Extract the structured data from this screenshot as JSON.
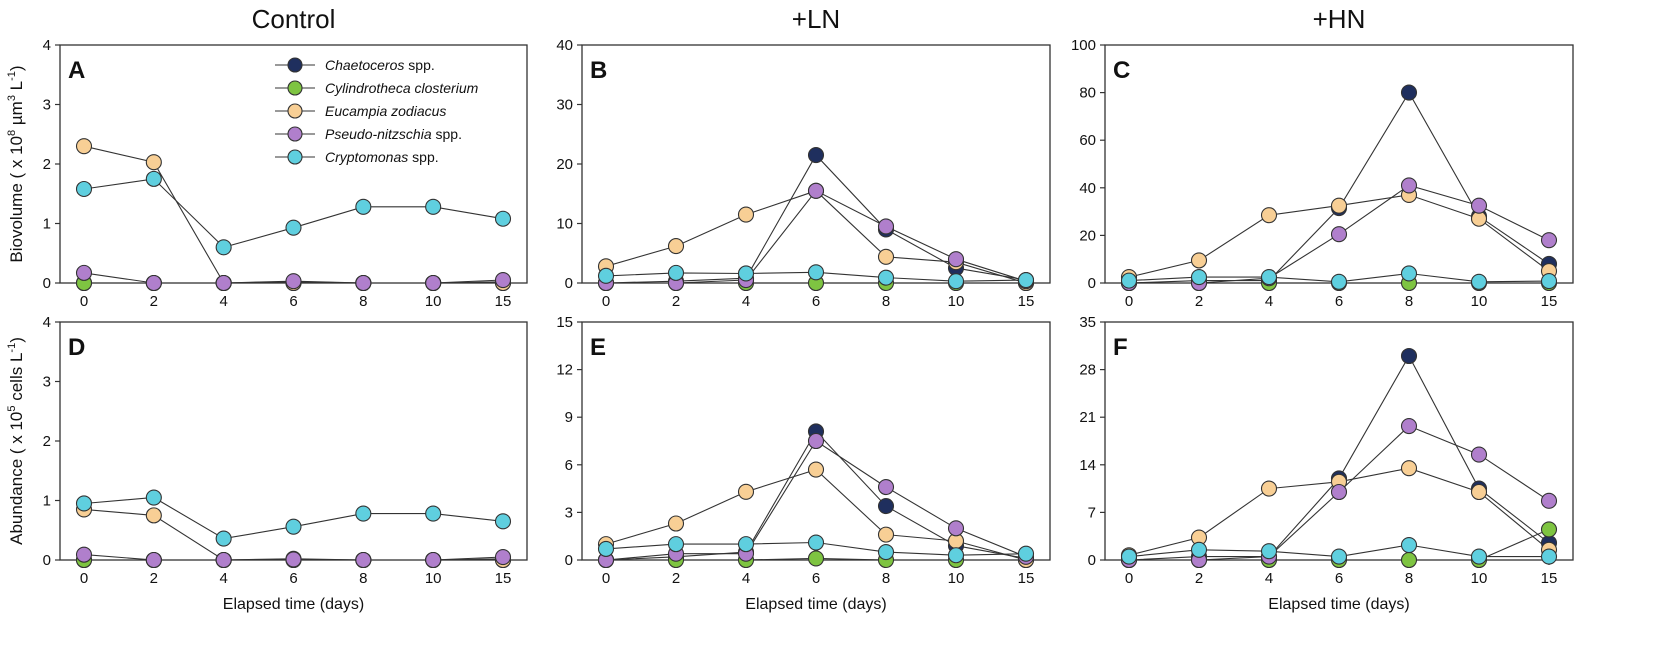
{
  "chart_data": {
    "type": "line",
    "x_categories": [
      "0",
      "2",
      "4",
      "6",
      "8",
      "10",
      "15"
    ],
    "x_label": "Elapsed time (days)",
    "row_labels": [
      {
        "main": "Biovolume ( x 10",
        "sup": "8",
        "tail": " µm",
        "sup2": "3",
        "tail2": " L",
        "sup3": "-1",
        "end": ")"
      },
      {
        "main": "Abundance ( x 10",
        "sup": "5",
        "tail": " cells L",
        "sup2": "-1",
        "tail2": "",
        "sup3": "",
        "end": ")"
      }
    ],
    "column_titles": [
      "Control",
      "+LN",
      "+HN"
    ],
    "series": [
      {
        "name": "Chaetoceros",
        "suffix": " spp.",
        "color": "#1f2f5e"
      },
      {
        "name": "Cylindrotheca closterium",
        "suffix": "",
        "color": "#7ec441"
      },
      {
        "name": "Eucampia zodiacus",
        "suffix": "",
        "color": "#f8cf95"
      },
      {
        "name": "Pseudo-nitzschia",
        "suffix": " spp.",
        "color": "#b07fcc"
      },
      {
        "name": "Cryptomonas",
        "suffix": " spp.",
        "color": "#5fcfdf"
      }
    ],
    "panels": [
      {
        "label": "A",
        "row": 0,
        "col": 0,
        "ylim": [
          0,
          4
        ],
        "yticks": [
          "0",
          "1",
          "2",
          "3",
          "4"
        ],
        "values": [
          [
            0,
            0,
            0,
            0.02,
            0,
            0,
            0.02
          ],
          [
            0,
            0,
            0,
            0,
            0,
            0,
            0
          ],
          [
            2.3,
            2.03,
            0,
            0,
            0,
            0,
            0
          ],
          [
            0.17,
            0,
            0,
            0.03,
            0,
            0,
            0.05
          ],
          [
            1.58,
            1.75,
            0.6,
            0.93,
            1.28,
            1.28,
            1.08
          ]
        ]
      },
      {
        "label": "B",
        "row": 0,
        "col": 1,
        "ylim": [
          0,
          40
        ],
        "yticks": [
          "0",
          "10",
          "20",
          "30",
          "40"
        ],
        "values": [
          [
            0,
            0.3,
            0.8,
            21.5,
            9,
            2.5,
            0.5
          ],
          [
            0,
            0,
            0,
            0,
            0,
            0,
            0
          ],
          [
            2.8,
            6.2,
            11.5,
            15.5,
            4.4,
            3.5,
            0
          ],
          [
            0,
            0,
            0.5,
            15.5,
            9.5,
            4,
            0.3
          ],
          [
            1.2,
            1.7,
            1.6,
            1.8,
            0.9,
            0.3,
            0.5
          ]
        ]
      },
      {
        "label": "C",
        "row": 0,
        "col": 2,
        "ylim": [
          0,
          100
        ],
        "yticks": [
          "0",
          "20",
          "40",
          "60",
          "80",
          "100"
        ],
        "values": [
          [
            0,
            1,
            1,
            31.5,
            80,
            28,
            8
          ],
          [
            0,
            0,
            0,
            0,
            0,
            0,
            0
          ],
          [
            2.5,
            9.5,
            28.5,
            32.5,
            37,
            27,
            5
          ],
          [
            0,
            0,
            2,
            20.5,
            41,
            32.5,
            18
          ],
          [
            1,
            2.5,
            2.5,
            0.5,
            4,
            0.5,
            0.8
          ]
        ]
      },
      {
        "label": "D",
        "row": 1,
        "col": 0,
        "ylim": [
          0,
          4
        ],
        "yticks": [
          "0",
          "1",
          "2",
          "3",
          "4"
        ],
        "values": [
          [
            0,
            0,
            0,
            0.02,
            0,
            0,
            0.02
          ],
          [
            0,
            0,
            0,
            0,
            0,
            0,
            0
          ],
          [
            0.85,
            0.75,
            0,
            0,
            0,
            0,
            0
          ],
          [
            0.09,
            0,
            0,
            0.01,
            0,
            0,
            0.05
          ],
          [
            0.95,
            1.05,
            0.36,
            0.56,
            0.78,
            0.78,
            0.65
          ]
        ]
      },
      {
        "label": "E",
        "row": 1,
        "col": 1,
        "ylim": [
          0,
          15
        ],
        "yticks": [
          "0",
          "3",
          "6",
          "9",
          "12",
          "15"
        ],
        "values": [
          [
            0,
            0.2,
            0.5,
            8.1,
            3.4,
            0.9,
            0.1
          ],
          [
            0,
            0,
            0,
            0.1,
            0,
            0,
            0
          ],
          [
            1,
            2.3,
            4.3,
            5.7,
            1.6,
            1.2,
            0
          ],
          [
            0,
            0.4,
            0.4,
            7.5,
            4.6,
            2,
            0.2
          ],
          [
            0.7,
            1,
            1,
            1.1,
            0.5,
            0.3,
            0.4
          ]
        ]
      },
      {
        "label": "F",
        "row": 1,
        "col": 2,
        "ylim": [
          0,
          35
        ],
        "yticks": [
          "0",
          "7",
          "14",
          "21",
          "28",
          "35"
        ],
        "values": [
          [
            0,
            0.5,
            0.5,
            12,
            30,
            10.5,
            2.5
          ],
          [
            0,
            0,
            0,
            0,
            0,
            0,
            4.5
          ],
          [
            0.7,
            3.3,
            10.5,
            11.5,
            13.5,
            10,
            1.5
          ],
          [
            0,
            0,
            0.5,
            10,
            19.7,
            15.5,
            8.7
          ],
          [
            0.5,
            1.5,
            1.3,
            0.5,
            2.2,
            0.5,
            0.5
          ]
        ]
      }
    ]
  }
}
